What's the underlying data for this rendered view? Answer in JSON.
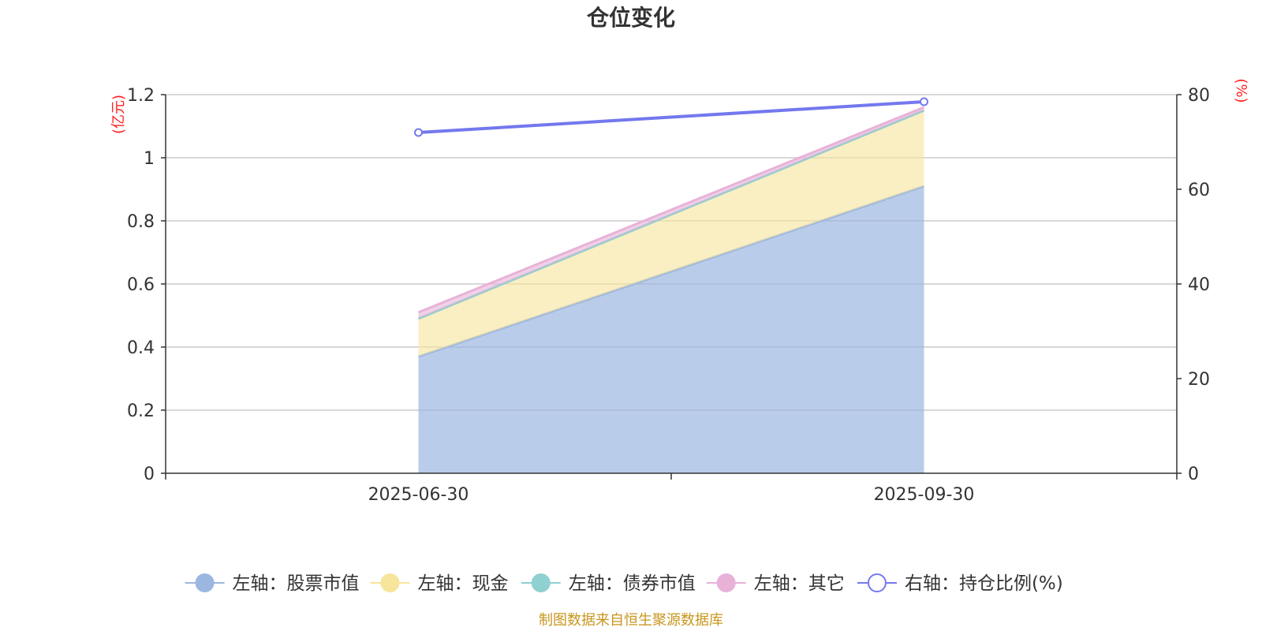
{
  "chart_data": {
    "type": "area",
    "title": "仓位变化",
    "x": [
      "2025-06-30",
      "2025-09-30"
    ],
    "left_axis": {
      "unit": "(亿元)",
      "ylim": [
        0,
        1.2
      ],
      "ticks": [
        "0",
        "0.2",
        "0.4",
        "0.6",
        "0.8",
        "1",
        "1.2"
      ]
    },
    "right_axis": {
      "unit": "(%)",
      "ylim": [
        0,
        80
      ],
      "ticks": [
        "0",
        "20",
        "40",
        "60",
        "80"
      ]
    },
    "stacked": true,
    "grid": true,
    "legend_position": "bottom",
    "series": [
      {
        "name": "左轴：股票市值",
        "axis": "left",
        "values": [
          0.37,
          0.91
        ],
        "color": "#9bb6e0"
      },
      {
        "name": "左轴：现金",
        "axis": "left",
        "values": [
          0.12,
          0.24
        ],
        "color": "#f7e59b"
      },
      {
        "name": "左轴：债券市值",
        "axis": "left",
        "values": [
          0,
          0
        ],
        "color": "#8fd0d0"
      },
      {
        "name": "左轴：其它",
        "axis": "left",
        "values": [
          0.02,
          0.01
        ],
        "color": "#e8b2d8"
      },
      {
        "name": "右轴：持仓比例(%)",
        "axis": "right",
        "type": "line",
        "values": [
          72,
          78.5
        ],
        "color": "#7378ee"
      }
    ],
    "source": "制图数据来自恒生聚源数据库",
    "colors": {
      "axis_unit": "#ff2222",
      "source": "#c8961e",
      "grid": "#cccccc",
      "axis": "#333333"
    }
  }
}
